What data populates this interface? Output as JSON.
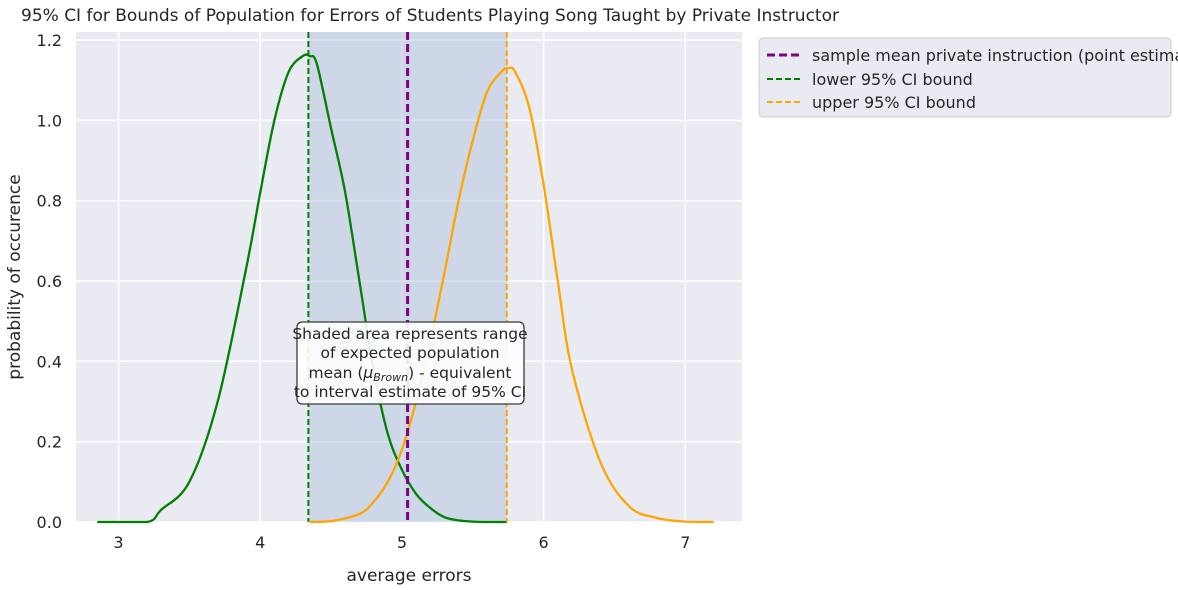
{
  "chart_data": {
    "type": "area",
    "title": "95% CI for Bounds of Population for Errors of Students Playing Song Taught by Private Instructor",
    "xlabel": "average errors",
    "ylabel": "probability of occurence",
    "xlim": [
      2.7,
      7.4
    ],
    "ylim": [
      0,
      1.22
    ],
    "x_ticks": [
      3,
      4,
      5,
      6,
      7
    ],
    "y_ticks": [
      0.0,
      0.2,
      0.4,
      0.6,
      0.8,
      1.0,
      1.2
    ],
    "x_tick_labels": [
      "3",
      "4",
      "5",
      "6",
      "7"
    ],
    "y_tick_labels": [
      "0.0",
      "0.2",
      "0.4",
      "0.6",
      "0.8",
      "1.0",
      "1.2"
    ],
    "grid": true,
    "legend_position": "outside-top-right",
    "shaded_interval": {
      "x_start": 4.34,
      "x_end": 5.74,
      "color": "#b0c4de"
    },
    "series": [
      {
        "name": "lower 95% CI bound",
        "style": "kde",
        "color": "#008000",
        "x": [
          2.85,
          3.2,
          3.3,
          3.5,
          3.7,
          3.9,
          4.0,
          4.1,
          4.2,
          4.3,
          4.35,
          4.4,
          4.5,
          4.6,
          4.7,
          4.8,
          4.9,
          5.0,
          5.1,
          5.2,
          5.3,
          5.4,
          5.5,
          5.6,
          5.74
        ],
        "values": [
          0.0,
          0.0,
          0.03,
          0.1,
          0.3,
          0.63,
          0.82,
          1.0,
          1.12,
          1.16,
          1.16,
          1.14,
          0.98,
          0.82,
          0.6,
          0.38,
          0.22,
          0.13,
          0.07,
          0.035,
          0.012,
          0.004,
          0.001,
          0.0,
          0.0
        ]
      },
      {
        "name": "upper 95% CI bound",
        "style": "kde",
        "color": "#ffa500",
        "x": [
          4.35,
          4.5,
          4.7,
          4.8,
          4.9,
          5.0,
          5.1,
          5.2,
          5.3,
          5.4,
          5.5,
          5.6,
          5.7,
          5.75,
          5.8,
          5.9,
          6.0,
          6.1,
          6.2,
          6.4,
          6.6,
          6.8,
          7.0,
          7.2
        ],
        "values": [
          0.0,
          0.002,
          0.02,
          0.05,
          0.1,
          0.18,
          0.3,
          0.45,
          0.62,
          0.8,
          0.95,
          1.07,
          1.12,
          1.13,
          1.12,
          1.03,
          0.84,
          0.6,
          0.38,
          0.15,
          0.04,
          0.01,
          0.001,
          0.0
        ]
      },
      {
        "name": "sample mean private instruction (point estimate)",
        "style": "vline",
        "color": "#800080",
        "x": 5.04
      },
      {
        "name": "lower 95% CI bound",
        "style": "vline",
        "color": "#008000",
        "x": 4.34
      },
      {
        "name": "upper 95% CI bound",
        "style": "vline",
        "color": "#ffa500",
        "x": 5.74
      }
    ],
    "legend": [
      {
        "label": "sample mean private instruction (point estimate)",
        "color": "#800080"
      },
      {
        "label": "lower 95% CI bound",
        "color": "#008000"
      },
      {
        "label": "upper 95% CI bound",
        "color": "#ffa500"
      }
    ],
    "annotation": {
      "lines": [
        "Shaded area represents range",
        "of expected population",
        "mean (",
        "μ",
        "Brown",
        ") - equivalent",
        "to interval estimate of 95% CI"
      ]
    }
  }
}
